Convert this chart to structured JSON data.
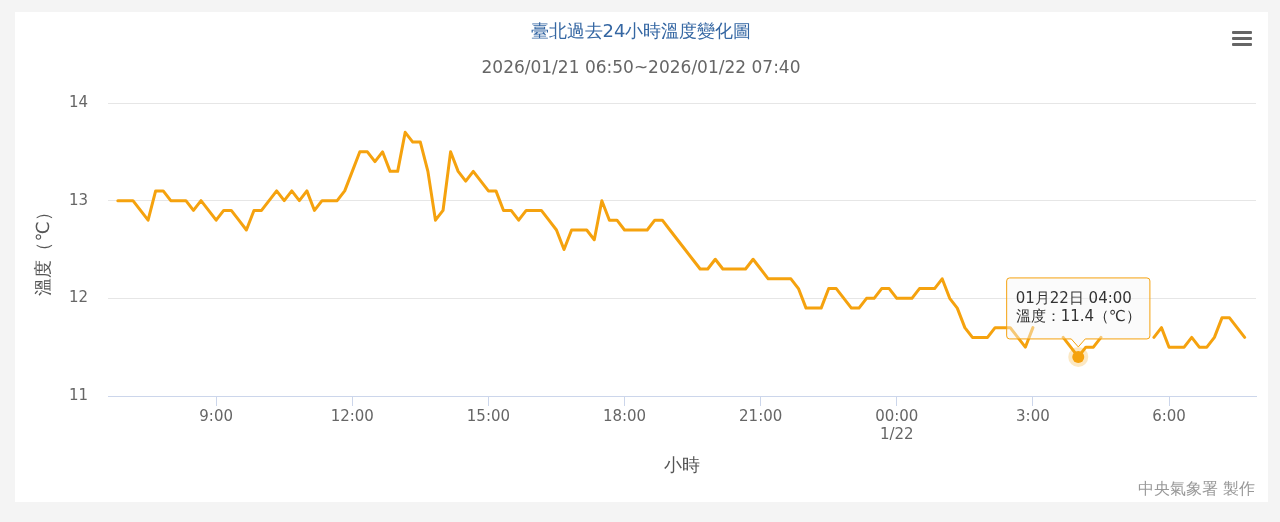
{
  "chart_data": {
    "type": "line",
    "title": "臺北過去24小時溫度變化圖",
    "subtitle": "2026/01/21 06:50~2026/01/22 07:40",
    "xlabel": "小時",
    "ylabel": "溫度（℃）",
    "x": [
      "2026-01-21T06:50",
      "2026-01-21T07:00",
      "2026-01-21T07:10",
      "2026-01-21T07:20",
      "2026-01-21T07:30",
      "2026-01-21T07:40",
      "2026-01-21T07:50",
      "2026-01-21T08:00",
      "2026-01-21T08:10",
      "2026-01-21T08:20",
      "2026-01-21T08:30",
      "2026-01-21T08:40",
      "2026-01-21T08:50",
      "2026-01-21T09:00",
      "2026-01-21T09:10",
      "2026-01-21T09:20",
      "2026-01-21T09:30",
      "2026-01-21T09:40",
      "2026-01-21T09:50",
      "2026-01-21T10:00",
      "2026-01-21T10:10",
      "2026-01-21T10:20",
      "2026-01-21T10:30",
      "2026-01-21T10:40",
      "2026-01-21T10:50",
      "2026-01-21T11:00",
      "2026-01-21T11:10",
      "2026-01-21T11:20",
      "2026-01-21T11:30",
      "2026-01-21T11:40",
      "2026-01-21T11:50",
      "2026-01-21T12:00",
      "2026-01-21T12:10",
      "2026-01-21T12:20",
      "2026-01-21T12:30",
      "2026-01-21T12:40",
      "2026-01-21T12:50",
      "2026-01-21T13:00",
      "2026-01-21T13:10",
      "2026-01-21T13:20",
      "2026-01-21T13:30",
      "2026-01-21T13:40",
      "2026-01-21T13:50",
      "2026-01-21T14:00",
      "2026-01-21T14:10",
      "2026-01-21T14:20",
      "2026-01-21T14:30",
      "2026-01-21T14:40",
      "2026-01-21T14:50",
      "2026-01-21T15:00",
      "2026-01-21T15:10",
      "2026-01-21T15:20",
      "2026-01-21T15:30",
      "2026-01-21T15:40",
      "2026-01-21T15:50",
      "2026-01-21T16:00",
      "2026-01-21T16:10",
      "2026-01-21T16:20",
      "2026-01-21T16:30",
      "2026-01-21T16:40",
      "2026-01-21T16:50",
      "2026-01-21T17:00",
      "2026-01-21T17:10",
      "2026-01-21T17:20",
      "2026-01-21T17:30",
      "2026-01-21T17:40",
      "2026-01-21T17:50",
      "2026-01-21T18:00",
      "2026-01-21T18:10",
      "2026-01-21T18:20",
      "2026-01-21T18:30",
      "2026-01-21T18:40",
      "2026-01-21T18:50",
      "2026-01-21T19:00",
      "2026-01-21T19:10",
      "2026-01-21T19:20",
      "2026-01-21T19:30",
      "2026-01-21T19:40",
      "2026-01-21T19:50",
      "2026-01-21T20:00",
      "2026-01-21T20:10",
      "2026-01-21T20:20",
      "2026-01-21T20:30",
      "2026-01-21T20:40",
      "2026-01-21T20:50",
      "2026-01-21T21:00",
      "2026-01-21T21:10",
      "2026-01-21T21:20",
      "2026-01-21T21:30",
      "2026-01-21T21:40",
      "2026-01-21T21:50",
      "2026-01-21T22:00",
      "2026-01-21T22:10",
      "2026-01-21T22:20",
      "2026-01-21T22:30",
      "2026-01-21T22:40",
      "2026-01-21T22:50",
      "2026-01-21T23:00",
      "2026-01-21T23:10",
      "2026-01-21T23:20",
      "2026-01-21T23:30",
      "2026-01-21T23:40",
      "2026-01-21T23:50",
      "2026-01-22T00:00",
      "2026-01-22T00:10",
      "2026-01-22T00:20",
      "2026-01-22T00:30",
      "2026-01-22T00:40",
      "2026-01-22T00:50",
      "2026-01-22T01:00",
      "2026-01-22T01:10",
      "2026-01-22T01:20",
      "2026-01-22T01:30",
      "2026-01-22T01:40",
      "2026-01-22T01:50",
      "2026-01-22T02:00",
      "2026-01-22T02:10",
      "2026-01-22T02:20",
      "2026-01-22T02:30",
      "2026-01-22T02:40",
      "2026-01-22T02:50",
      "2026-01-22T03:00",
      "2026-01-22T03:10",
      "2026-01-22T03:20",
      "2026-01-22T03:30",
      "2026-01-22T03:40",
      "2026-01-22T03:50",
      "2026-01-22T04:00",
      "2026-01-22T04:10",
      "2026-01-22T04:20",
      "2026-01-22T04:30",
      "2026-01-22T04:40",
      "2026-01-22T04:50",
      "2026-01-22T05:00",
      "2026-01-22T05:10",
      "2026-01-22T05:20",
      "2026-01-22T05:30",
      "2026-01-22T05:40",
      "2026-01-22T05:50",
      "2026-01-22T06:00",
      "2026-01-22T06:10",
      "2026-01-22T06:20",
      "2026-01-22T06:30",
      "2026-01-22T06:40",
      "2026-01-22T06:50",
      "2026-01-22T07:00",
      "2026-01-22T07:10",
      "2026-01-22T07:20",
      "2026-01-22T07:30",
      "2026-01-22T07:40"
    ],
    "values": [
      13.0,
      13.0,
      13.0,
      12.9,
      12.8,
      13.1,
      13.1,
      13.0,
      13.0,
      13.0,
      12.9,
      13.0,
      12.9,
      12.8,
      12.9,
      12.9,
      12.8,
      12.7,
      12.9,
      12.9,
      13.0,
      13.1,
      13.0,
      13.1,
      13.0,
      13.1,
      12.9,
      13.0,
      13.0,
      13.0,
      13.1,
      13.3,
      13.5,
      13.5,
      13.4,
      13.5,
      13.3,
      13.3,
      13.7,
      13.6,
      13.6,
      13.3,
      12.8,
      12.9,
      13.5,
      13.3,
      13.2,
      13.3,
      13.2,
      13.1,
      13.1,
      12.9,
      12.9,
      12.8,
      12.9,
      12.9,
      12.9,
      12.8,
      12.7,
      12.5,
      12.7,
      12.7,
      12.7,
      12.6,
      13.0,
      12.8,
      12.8,
      12.7,
      12.7,
      12.7,
      12.7,
      12.8,
      12.8,
      12.7,
      12.6,
      12.5,
      12.4,
      12.3,
      12.3,
      12.4,
      12.3,
      12.3,
      12.3,
      12.3,
      12.4,
      12.3,
      12.2,
      12.2,
      12.2,
      12.2,
      12.1,
      11.9,
      11.9,
      11.9,
      12.1,
      12.1,
      12.0,
      11.9,
      11.9,
      12.0,
      12.0,
      12.1,
      12.1,
      12.0,
      12.0,
      12.0,
      12.1,
      12.1,
      12.1,
      12.2,
      12.0,
      11.9,
      11.7,
      11.6,
      11.6,
      11.6,
      11.7,
      11.7,
      11.7,
      11.6,
      11.5,
      11.7,
      null,
      null,
      null,
      11.6,
      11.5,
      11.4,
      11.5,
      11.5,
      11.6,
      null,
      null,
      null,
      null,
      null,
      null,
      11.6,
      11.7,
      11.5,
      11.5,
      11.5,
      11.6,
      11.5,
      11.5,
      11.6,
      11.8,
      11.8,
      11.7,
      11.6
    ],
    "color": "#f5a20e",
    "xlim": [
      "2026-01-21T06:37",
      "2026-01-22T07:55"
    ],
    "xticks": [
      {
        "value": "2026-01-21T09:00",
        "label": "9:00"
      },
      {
        "value": "2026-01-21T12:00",
        "label": "12:00"
      },
      {
        "value": "2026-01-21T15:00",
        "label": "15:00"
      },
      {
        "value": "2026-01-21T18:00",
        "label": "18:00"
      },
      {
        "value": "2026-01-21T21:00",
        "label": "21:00"
      },
      {
        "value": "2026-01-22T00:00",
        "label": "00:00\n1/22"
      },
      {
        "value": "2026-01-22T03:00",
        "label": "3:00"
      },
      {
        "value": "2026-01-22T06:00",
        "label": "6:00"
      }
    ],
    "ylim": [
      11,
      14
    ],
    "yticks": [
      11,
      12,
      13,
      14
    ],
    "grid": "y",
    "annotations": [
      {
        "text": "01月22日 04:00\n溫度：11.4（℃）",
        "x": "2026-01-22T04:00",
        "y": 11.4
      },
      "中央氣象署 製作"
    ]
  }
}
